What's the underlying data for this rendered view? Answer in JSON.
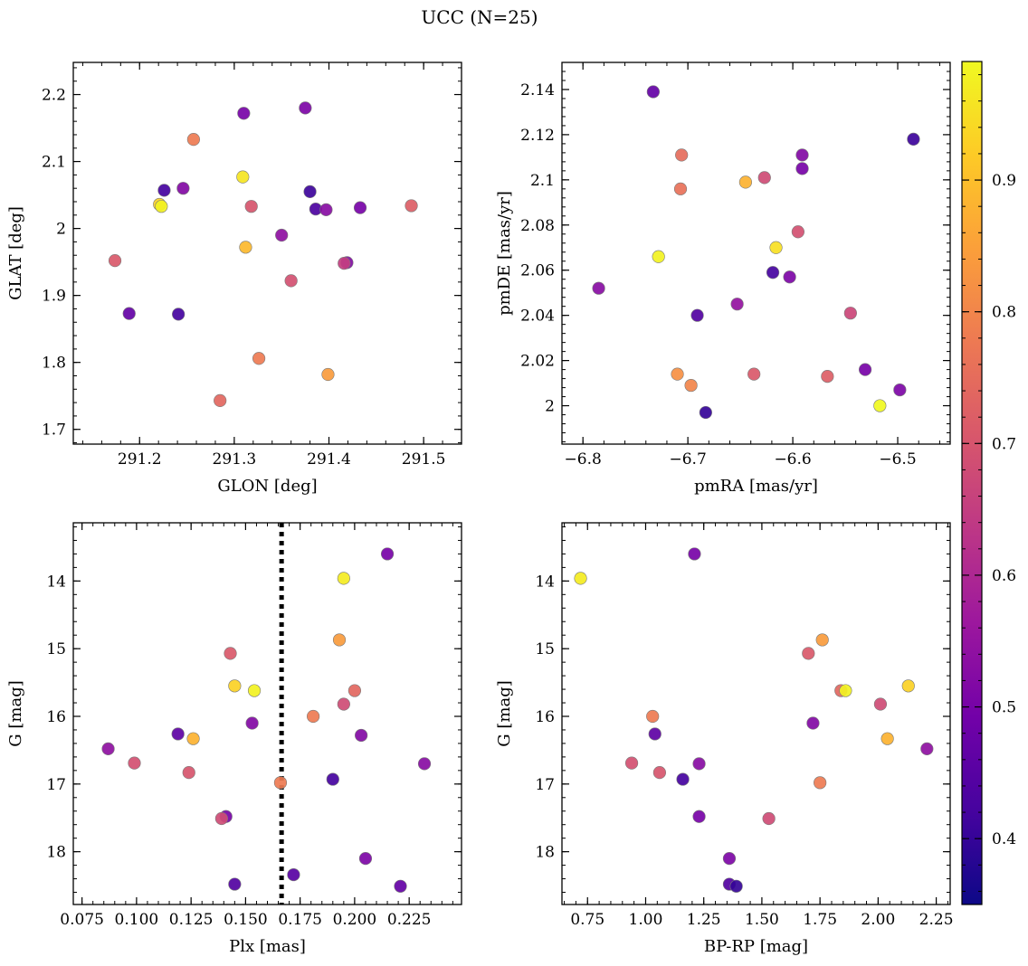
{
  "figure": {
    "title": "UCC (N=25)"
  },
  "colorbar": {
    "colormap": "plasma",
    "range": [
      0.35,
      0.99
    ],
    "ticks": [
      0.4,
      0.5,
      0.6,
      0.7,
      0.8,
      0.9
    ],
    "stops": [
      "#0d0887",
      "#46039f",
      "#7201a8",
      "#9c179e",
      "#bd3786",
      "#d8576b",
      "#ed7953",
      "#fb9f3a",
      "#fdca26",
      "#f0f921"
    ]
  },
  "chart_data": [
    {
      "type": "scatter",
      "xlabel": "GLON [deg]",
      "ylabel": "GLAT [deg]",
      "xlim": [
        291.13,
        291.54
      ],
      "ylim": [
        1.678,
        2.248
      ],
      "xticks": [
        291.2,
        291.3,
        291.4,
        291.5
      ],
      "yticks": [
        1.7,
        1.8,
        1.9,
        2.0,
        2.1,
        2.2
      ],
      "y_inverted": false,
      "x": [
        291.226,
        291.246,
        291.31,
        291.375,
        291.257,
        291.309,
        291.221,
        291.223,
        291.38,
        291.386,
        291.318,
        291.397,
        291.433,
        291.487,
        291.312,
        291.35,
        291.174,
        291.419,
        291.416,
        291.36,
        291.189,
        291.241,
        291.326,
        291.399,
        291.285
      ],
      "y": [
        2.057,
        2.06,
        2.172,
        2.18,
        2.133,
        2.077,
        2.036,
        2.033,
        2.055,
        2.029,
        2.033,
        2.028,
        2.031,
        2.034,
        1.972,
        1.99,
        1.952,
        1.949,
        1.948,
        1.922,
        1.873,
        1.872,
        1.806,
        1.782,
        1.743
      ],
      "color_values": [
        0.42,
        0.52,
        0.5,
        0.51,
        0.78,
        0.96,
        0.93,
        0.98,
        0.41,
        0.43,
        0.7,
        0.53,
        0.5,
        0.72,
        0.89,
        0.54,
        0.71,
        0.52,
        0.65,
        0.69,
        0.47,
        0.42,
        0.78,
        0.84,
        0.74
      ]
    },
    {
      "type": "scatter",
      "xlabel": "pmRA [mas/yr]",
      "ylabel": "pmDE [mas/yr]",
      "xlim": [
        -6.82,
        -6.45
      ],
      "ylim": [
        1.983,
        2.152
      ],
      "xticks": [
        -6.8,
        -6.7,
        -6.6,
        -6.5
      ],
      "yticks": [
        2.0,
        2.02,
        2.04,
        2.06,
        2.08,
        2.1,
        2.12,
        2.14
      ],
      "y_inverted": false,
      "x": [
        -6.733,
        -6.485,
        -6.706,
        -6.591,
        -6.591,
        -6.627,
        -6.645,
        -6.707,
        -6.595,
        -6.616,
        -6.728,
        -6.619,
        -6.603,
        -6.785,
        -6.653,
        -6.691,
        -6.545,
        -6.531,
        -6.71,
        -6.637,
        -6.567,
        -6.697,
        -6.498,
        -6.517,
        -6.683
      ],
      "y": [
        2.139,
        2.118,
        2.111,
        2.111,
        2.105,
        2.101,
        2.099,
        2.096,
        2.077,
        2.07,
        2.066,
        2.059,
        2.057,
        2.052,
        2.045,
        2.04,
        2.041,
        2.016,
        2.014,
        2.014,
        2.013,
        2.009,
        2.007,
        2.0,
        1.997
      ],
      "color_values": [
        0.47,
        0.41,
        0.75,
        0.52,
        0.5,
        0.68,
        0.88,
        0.76,
        0.69,
        0.95,
        0.98,
        0.42,
        0.51,
        0.53,
        0.55,
        0.44,
        0.67,
        0.5,
        0.82,
        0.71,
        0.72,
        0.8,
        0.51,
        0.99,
        0.4
      ]
    },
    {
      "type": "scatter",
      "xlabel": "Plx [mas]",
      "ylabel": "G [mag]",
      "xlim": [
        0.071,
        0.249
      ],
      "ylim": [
        13.14,
        18.78
      ],
      "xticks": [
        0.075,
        0.1,
        0.125,
        0.15,
        0.175,
        0.2,
        0.225
      ],
      "xtick_labels": [
        "0.075",
        "0.100",
        "0.125",
        "0.150",
        "0.175",
        "0.200",
        "0.225"
      ],
      "yticks": [
        14,
        15,
        16,
        17,
        18
      ],
      "y_inverted": true,
      "vline": {
        "x": 0.1665,
        "style": "dotted"
      },
      "x": [
        0.215,
        0.195,
        0.143,
        0.193,
        0.145,
        0.154,
        0.2,
        0.195,
        0.181,
        0.153,
        0.119,
        0.203,
        0.126,
        0.087,
        0.099,
        0.232,
        0.124,
        0.166,
        0.19,
        0.141,
        0.139,
        0.205,
        0.145,
        0.172,
        0.221
      ],
      "y": [
        13.6,
        13.96,
        15.07,
        14.87,
        15.55,
        15.62,
        15.62,
        15.82,
        16.0,
        16.1,
        16.26,
        16.28,
        16.33,
        16.48,
        16.69,
        16.7,
        16.83,
        16.98,
        16.93,
        17.48,
        17.51,
        18.1,
        18.48,
        18.34,
        18.51
      ],
      "color_values": [
        0.5,
        0.97,
        0.71,
        0.84,
        0.93,
        0.98,
        0.74,
        0.68,
        0.78,
        0.52,
        0.46,
        0.52,
        0.88,
        0.54,
        0.69,
        0.53,
        0.7,
        0.78,
        0.42,
        0.5,
        0.68,
        0.51,
        0.44,
        0.45,
        0.47
      ]
    },
    {
      "type": "scatter",
      "xlabel": "BP-RP [mag]",
      "ylabel": "G [mag]",
      "xlim": [
        0.64,
        2.31
      ],
      "ylim": [
        13.14,
        18.78
      ],
      "xticks": [
        0.75,
        1.0,
        1.25,
        1.5,
        1.75,
        2.0,
        2.25
      ],
      "xtick_labels": [
        "0.75",
        "1.00",
        "1.25",
        "1.50",
        "1.75",
        "2.00",
        "2.25"
      ],
      "yticks": [
        14,
        15,
        16,
        17,
        18
      ],
      "y_inverted": true,
      "x": [
        1.21,
        0.72,
        1.7,
        1.76,
        2.13,
        1.84,
        1.86,
        2.01,
        1.03,
        1.72,
        1.04,
        2.04,
        2.21,
        0.94,
        1.23,
        1.06,
        1.75,
        1.16,
        1.23,
        1.53,
        1.36,
        1.36,
        1.39
      ],
      "y": [
        13.6,
        13.96,
        15.07,
        14.87,
        15.55,
        15.62,
        15.62,
        15.82,
        16.0,
        16.1,
        16.26,
        16.33,
        16.48,
        16.69,
        16.7,
        16.83,
        16.98,
        16.93,
        17.48,
        17.51,
        18.1,
        18.48,
        18.51
      ],
      "color_values": [
        0.5,
        0.97,
        0.71,
        0.84,
        0.93,
        0.74,
        0.98,
        0.68,
        0.78,
        0.52,
        0.46,
        0.88,
        0.54,
        0.69,
        0.53,
        0.7,
        0.78,
        0.42,
        0.5,
        0.68,
        0.51,
        0.44,
        0.4
      ]
    }
  ]
}
